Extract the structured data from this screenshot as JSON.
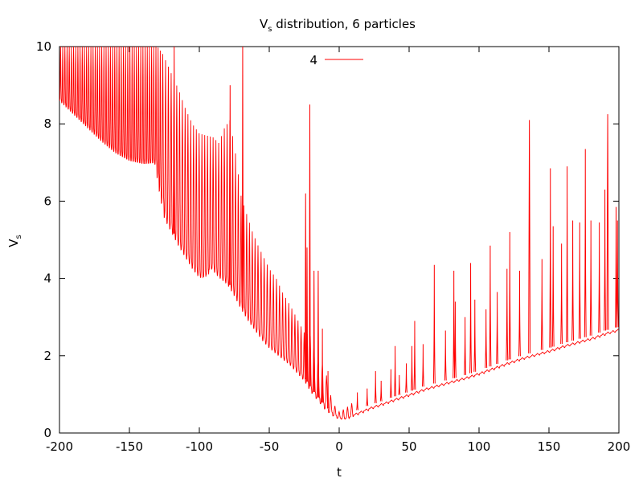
{
  "chart_data": {
    "type": "line",
    "title_main": "V",
    "title_sub": "s",
    "title_rest": " distribution, 6 particles",
    "xlabel": "t",
    "ylabel_main": "V",
    "ylabel_sub": "s",
    "xlim": [
      -200,
      200
    ],
    "ylim": [
      0,
      10
    ],
    "x_ticks": [
      -200,
      -150,
      -100,
      -50,
      0,
      50,
      100,
      150,
      200
    ],
    "y_ticks": [
      0,
      2,
      4,
      6,
      8,
      10
    ],
    "grid": false,
    "legend_position": "top-center",
    "series": [
      {
        "name": "4",
        "color": "#ff0000",
        "baseline": [
          [
            -200,
            8.6
          ],
          [
            -190,
            8.25
          ],
          [
            -180,
            7.9
          ],
          [
            -170,
            7.55
          ],
          [
            -160,
            7.25
          ],
          [
            -150,
            7.05
          ],
          [
            -140,
            6.97
          ],
          [
            -132,
            7.0
          ],
          [
            -128,
            6.1
          ],
          [
            -125,
            5.55
          ],
          [
            -120,
            5.2
          ],
          [
            -115,
            4.85
          ],
          [
            -110,
            4.55
          ],
          [
            -105,
            4.25
          ],
          [
            -100,
            4.02
          ],
          [
            -96,
            4.05
          ],
          [
            -92,
            4.3
          ],
          [
            -88,
            4.1
          ],
          [
            -85,
            4.0
          ],
          [
            -80,
            3.85
          ],
          [
            -75,
            3.55
          ],
          [
            -70,
            3.2
          ],
          [
            -65,
            2.9
          ],
          [
            -60,
            2.65
          ],
          [
            -55,
            2.4
          ],
          [
            -50,
            2.2
          ],
          [
            -45,
            2.05
          ],
          [
            -40,
            1.9
          ],
          [
            -35,
            1.75
          ],
          [
            -30,
            1.55
          ],
          [
            -25,
            1.35
          ],
          [
            -20,
            1.05
          ],
          [
            -15,
            0.82
          ],
          [
            -10,
            0.6
          ],
          [
            -5,
            0.45
          ],
          [
            0,
            0.35
          ],
          [
            5,
            0.38
          ],
          [
            10,
            0.45
          ],
          [
            15,
            0.52
          ],
          [
            20,
            0.6
          ],
          [
            30,
            0.72
          ],
          [
            40,
            0.85
          ],
          [
            50,
            0.97
          ],
          [
            60,
            1.1
          ],
          [
            70,
            1.2
          ],
          [
            80,
            1.3
          ],
          [
            90,
            1.4
          ],
          [
            100,
            1.52
          ],
          [
            110,
            1.65
          ],
          [
            120,
            1.78
          ],
          [
            130,
            1.9
          ],
          [
            140,
            2.0
          ],
          [
            150,
            2.1
          ],
          [
            160,
            2.22
          ],
          [
            170,
            2.32
          ],
          [
            180,
            2.42
          ],
          [
            190,
            2.55
          ],
          [
            200,
            2.65
          ]
        ],
        "envelope_top": [
          [
            -200,
            10.0
          ],
          [
            -130,
            10.0
          ],
          [
            -126,
            9.8
          ],
          [
            -120,
            9.3
          ],
          [
            -115,
            8.9
          ],
          [
            -110,
            8.4
          ],
          [
            -105,
            8.0
          ],
          [
            -100,
            7.75
          ],
          [
            -95,
            7.7
          ],
          [
            -90,
            7.65
          ],
          [
            -86,
            7.5
          ],
          [
            -82,
            7.9
          ],
          [
            -78,
            8.1
          ],
          [
            -74,
            7.2
          ],
          [
            -70,
            6.1
          ],
          [
            -66,
            5.65
          ],
          [
            -62,
            5.2
          ],
          [
            -58,
            4.85
          ],
          [
            -54,
            4.55
          ],
          [
            -50,
            4.25
          ],
          [
            -45,
            4.0
          ],
          [
            -40,
            3.6
          ],
          [
            -35,
            3.3
          ],
          [
            -30,
            2.95
          ],
          [
            -25,
            2.6
          ],
          [
            -20,
            2.5
          ],
          [
            -15,
            2.0
          ],
          [
            -10,
            1.65
          ],
          [
            -5,
            0.8
          ],
          [
            0,
            0.55
          ],
          [
            5,
            0.65
          ],
          [
            10,
            0.8
          ]
        ],
        "spikes": [
          [
            -118,
            10.0
          ],
          [
            -78,
            9.0
          ],
          [
            -69,
            10.0
          ],
          [
            -24,
            6.2
          ],
          [
            -23,
            4.8
          ],
          [
            -21,
            8.5
          ],
          [
            -18,
            4.2
          ],
          [
            -15,
            4.2
          ],
          [
            -12,
            2.7
          ],
          [
            -8,
            1.6
          ],
          [
            13,
            1.05
          ],
          [
            20,
            1.15
          ],
          [
            26,
            1.6
          ],
          [
            30,
            1.35
          ],
          [
            37,
            1.65
          ],
          [
            40,
            2.25
          ],
          [
            43,
            1.5
          ],
          [
            48,
            1.8
          ],
          [
            52,
            2.25
          ],
          [
            54,
            2.9
          ],
          [
            60,
            2.3
          ],
          [
            68,
            4.35
          ],
          [
            76,
            2.65
          ],
          [
            82,
            4.2
          ],
          [
            83,
            3.4
          ],
          [
            90,
            3.0
          ],
          [
            94,
            4.4
          ],
          [
            97,
            3.45
          ],
          [
            105,
            3.2
          ],
          [
            108,
            4.85
          ],
          [
            113,
            3.65
          ],
          [
            120,
            4.25
          ],
          [
            122,
            5.2
          ],
          [
            129,
            4.2
          ],
          [
            136,
            8.1
          ],
          [
            145,
            4.5
          ],
          [
            151,
            6.85
          ],
          [
            153,
            5.35
          ],
          [
            159,
            4.9
          ],
          [
            163,
            6.9
          ],
          [
            167,
            5.5
          ],
          [
            172,
            5.45
          ],
          [
            176,
            7.35
          ],
          [
            180,
            5.5
          ],
          [
            186,
            5.45
          ],
          [
            190,
            6.3
          ],
          [
            192,
            8.25
          ],
          [
            198,
            5.85
          ],
          [
            199,
            5.5
          ]
        ]
      }
    ]
  }
}
